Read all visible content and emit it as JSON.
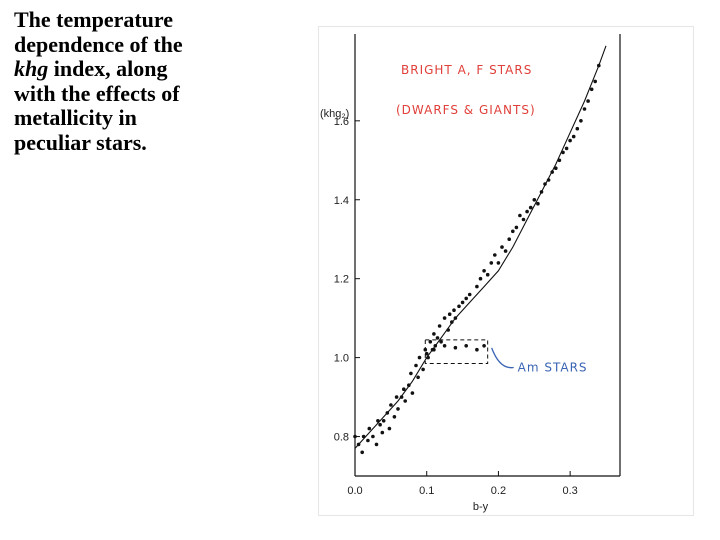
{
  "caption": {
    "line1": "The temperature",
    "line2": "dependence of the",
    "line3_italic": "khg",
    "line3_rest": " index, along",
    "line4": "with the effects of",
    "line5": "metallicity in",
    "line6": "peculiar stars."
  },
  "colors": {
    "annotation_red": "#e0403a",
    "annotation_blue": "#3a64b4",
    "ink": "#111111"
  },
  "chart_data": {
    "type": "scatter",
    "xlabel": "b-y",
    "ylabel": "(khg₂)",
    "xlim": [
      0.0,
      0.35
    ],
    "ylim": [
      0.7,
      1.82
    ],
    "xticks": [
      0.0,
      0.1,
      0.2,
      0.3
    ],
    "xtick_labels": [
      "0.0",
      "0.1",
      "0.2",
      "0.3"
    ],
    "yticks": [
      0.8,
      1.0,
      1.2,
      1.4,
      1.6
    ],
    "ytick_labels": [
      "0.8",
      "1.0",
      "1.2",
      "1.4",
      "1.6"
    ],
    "grid": false,
    "annotations": {
      "bright_line1": "BRIGHT A, F STARS",
      "bright_line2": "(DWARFS & GIANTS)",
      "am_label": "Am STARS"
    },
    "series": [
      {
        "kind": "points",
        "x": [
          0.0,
          0.005,
          0.01,
          0.012,
          0.018,
          0.02,
          0.025,
          0.03,
          0.032,
          0.035,
          0.038,
          0.04,
          0.045,
          0.048,
          0.05,
          0.055,
          0.058,
          0.06,
          0.065,
          0.068,
          0.07,
          0.075,
          0.078,
          0.08,
          0.085,
          0.088,
          0.09,
          0.095,
          0.098,
          0.1,
          0.102,
          0.105,
          0.108,
          0.11,
          0.112,
          0.115,
          0.118,
          0.12,
          0.125,
          0.13,
          0.132,
          0.135,
          0.138,
          0.14,
          0.145,
          0.15,
          0.155,
          0.16,
          0.17,
          0.175,
          0.18,
          0.185,
          0.19,
          0.195,
          0.2,
          0.205,
          0.21,
          0.215,
          0.22,
          0.225,
          0.23,
          0.235,
          0.24,
          0.245,
          0.25,
          0.255,
          0.26,
          0.265,
          0.27,
          0.275,
          0.28,
          0.285,
          0.29,
          0.295,
          0.3,
          0.305,
          0.31,
          0.315,
          0.32,
          0.325,
          0.33,
          0.335,
          0.34
        ],
        "y": [
          0.8,
          0.78,
          0.76,
          0.8,
          0.79,
          0.82,
          0.8,
          0.78,
          0.84,
          0.83,
          0.81,
          0.84,
          0.86,
          0.82,
          0.88,
          0.85,
          0.9,
          0.87,
          0.9,
          0.92,
          0.89,
          0.93,
          0.96,
          0.91,
          0.98,
          0.95,
          1.0,
          0.97,
          1.02,
          1.01,
          1.0,
          1.04,
          1.02,
          1.06,
          1.03,
          1.05,
          1.08,
          1.04,
          1.1,
          1.07,
          1.11,
          1.09,
          1.12,
          1.1,
          1.13,
          1.14,
          1.15,
          1.16,
          1.18,
          1.2,
          1.22,
          1.21,
          1.24,
          1.26,
          1.24,
          1.28,
          1.27,
          1.3,
          1.32,
          1.33,
          1.36,
          1.35,
          1.37,
          1.38,
          1.4,
          1.39,
          1.42,
          1.44,
          1.45,
          1.47,
          1.48,
          1.5,
          1.52,
          1.53,
          1.55,
          1.56,
          1.58,
          1.6,
          1.63,
          1.65,
          1.68,
          1.7,
          1.74
        ]
      },
      {
        "kind": "curve",
        "x": [
          0.0,
          0.02,
          0.04,
          0.06,
          0.08,
          0.1,
          0.12,
          0.14,
          0.16,
          0.18,
          0.2,
          0.22,
          0.24,
          0.26,
          0.28,
          0.3,
          0.32,
          0.34,
          0.35
        ],
        "y": [
          0.77,
          0.81,
          0.85,
          0.89,
          0.94,
          1.0,
          1.05,
          1.1,
          1.14,
          1.18,
          1.22,
          1.28,
          1.35,
          1.42,
          1.49,
          1.57,
          1.65,
          1.74,
          1.79
        ]
      },
      {
        "kind": "points",
        "region": "Am stars",
        "x": [
          0.11,
          0.125,
          0.14,
          0.155,
          0.17,
          0.18
        ],
        "y": [
          1.02,
          1.03,
          1.025,
          1.03,
          1.02,
          1.03
        ]
      }
    ]
  }
}
